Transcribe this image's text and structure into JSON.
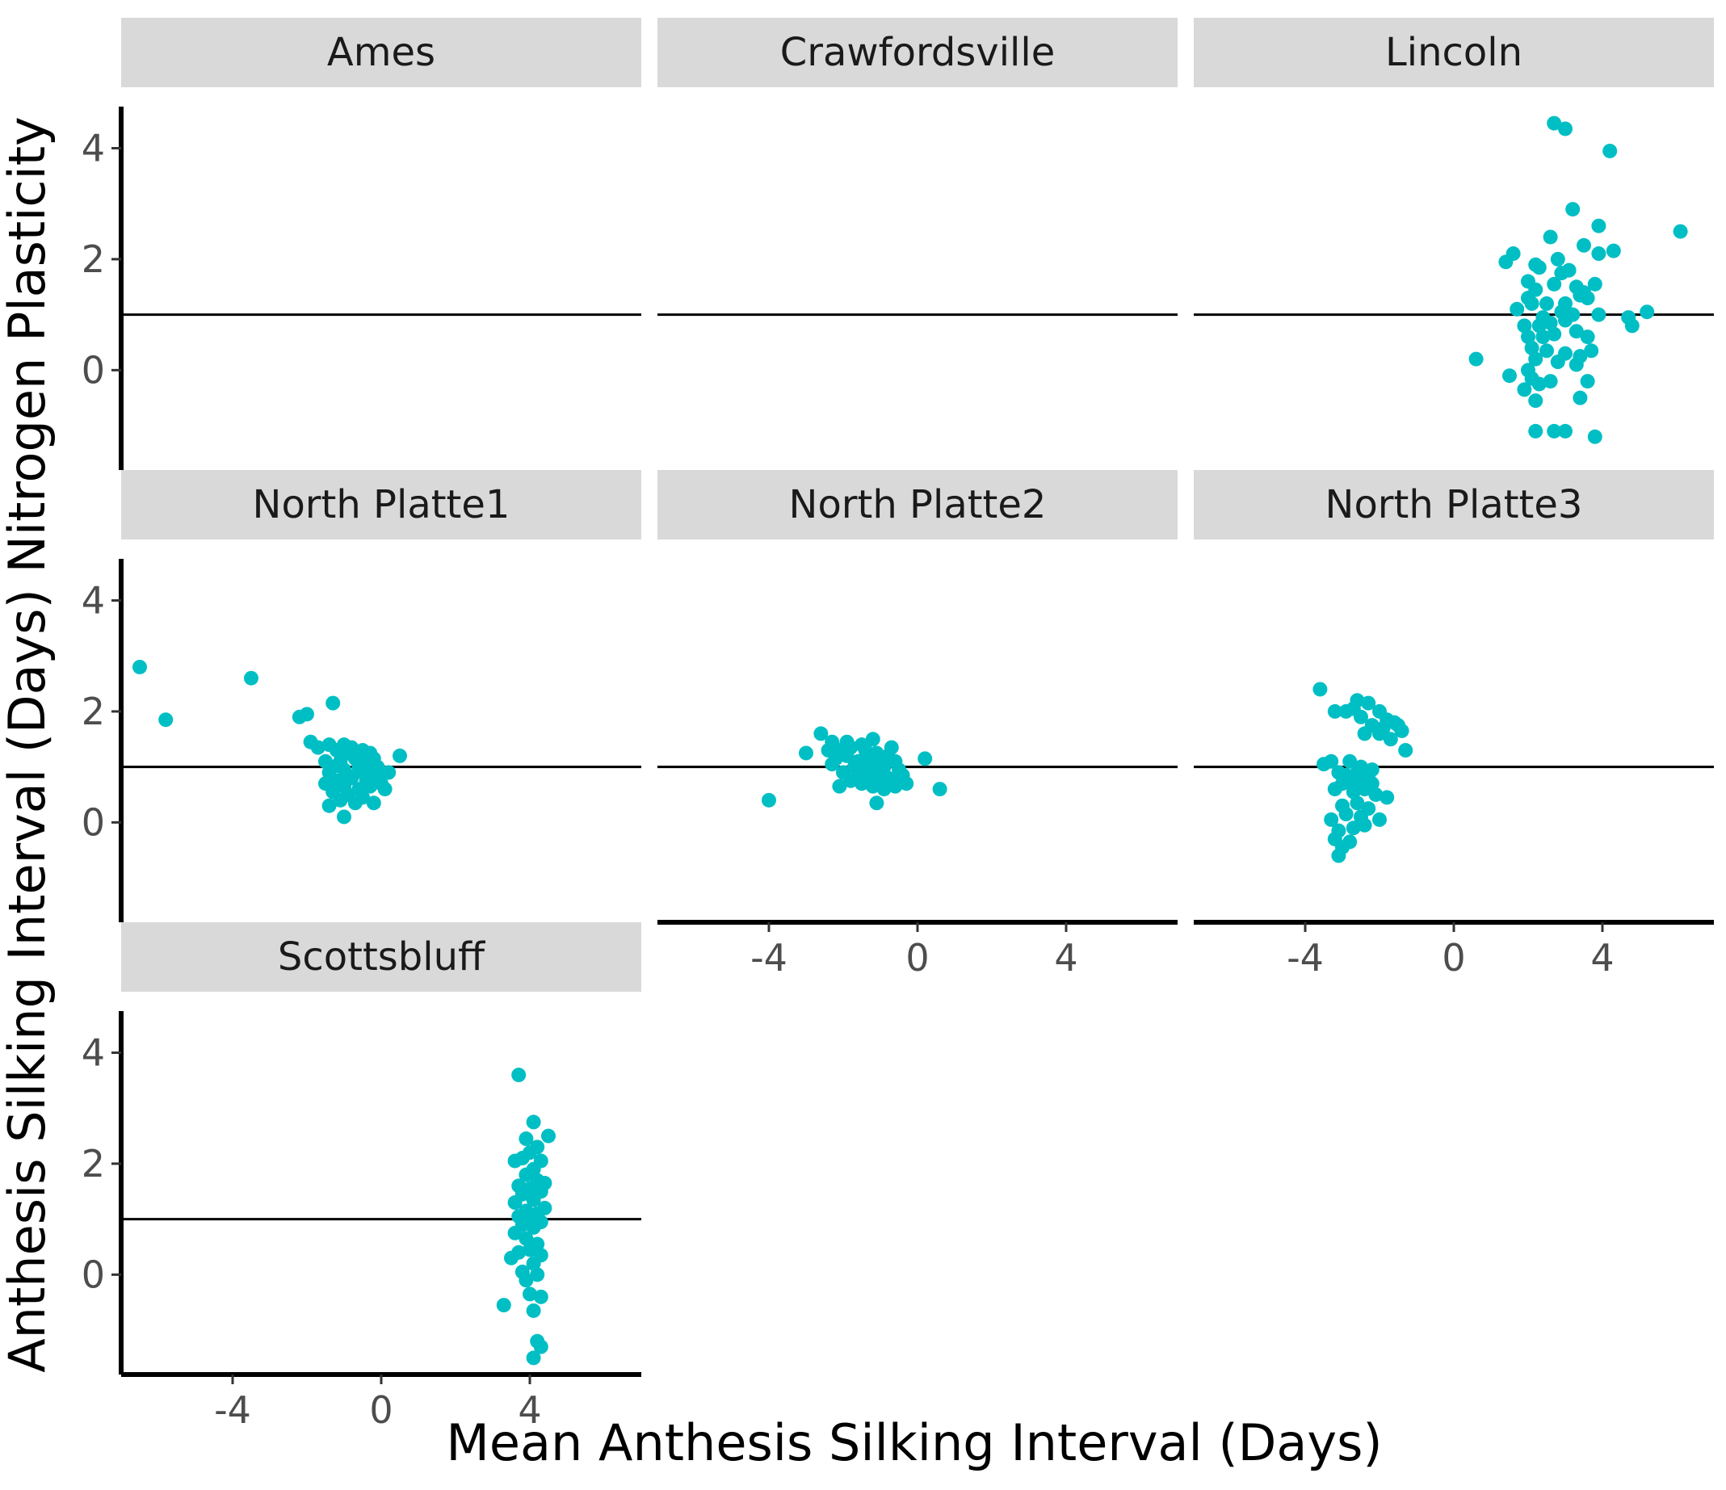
{
  "chart_data": {
    "type": "scatter",
    "xlabel": "Mean Anthesis Silking Interval (Days)",
    "ylabel": "Anthesis Silking Interval (Days) Nitrogen Plasticity",
    "xlim": [
      -7,
      7
    ],
    "ylim": [
      -1.8,
      4.75
    ],
    "x_ticks": [
      -4,
      0,
      4
    ],
    "x_tick_labels": [
      "-4",
      "0",
      "4"
    ],
    "y_ticks": [
      0,
      2,
      4
    ],
    "y_tick_labels": [
      "0",
      "2",
      "4"
    ],
    "reference_line_y": 1,
    "grid": false,
    "legend": "none",
    "point_color": "#00BFC4",
    "strip_fill": "#D9D9D9",
    "line_color": "#000000",
    "panels": [
      {
        "name": "Ames",
        "x": [],
        "y": []
      },
      {
        "name": "Crawfordsville",
        "x": [],
        "y": []
      },
      {
        "name": "Lincoln",
        "x": [
          2.7,
          3.0,
          4.2,
          3.2,
          3.9,
          6.1,
          1.4,
          1.6,
          2.2,
          2.6,
          2.8,
          3.5,
          4.3,
          3.9,
          2.0,
          2.3,
          2.9,
          3.1,
          3.3,
          3.5,
          3.6,
          3.8,
          2.0,
          2.2,
          2.5,
          2.7,
          3.0,
          3.4,
          1.7,
          2.1,
          2.4,
          2.9,
          3.2,
          3.9,
          4.7,
          5.2,
          1.9,
          2.3,
          2.6,
          3.0,
          3.3,
          4.8,
          2.0,
          2.4,
          2.7,
          3.6,
          2.1,
          2.5,
          3.0,
          3.4,
          3.7,
          0.6,
          2.0,
          2.2,
          2.8,
          3.3,
          2.1,
          1.5,
          2.3,
          3.6,
          2.6,
          1.9,
          3.4,
          2.2,
          2.2,
          2.7,
          3.0,
          3.8
        ],
        "y": [
          4.45,
          4.35,
          3.95,
          2.9,
          2.6,
          2.5,
          1.95,
          2.1,
          1.9,
          2.4,
          2.0,
          2.25,
          2.15,
          2.1,
          1.6,
          1.85,
          1.75,
          1.8,
          1.5,
          1.4,
          1.3,
          1.55,
          1.3,
          1.45,
          1.2,
          1.55,
          1.2,
          1.35,
          1.1,
          1.2,
          0.95,
          1.05,
          1.0,
          1.0,
          0.95,
          1.05,
          0.8,
          0.8,
          0.85,
          0.9,
          0.7,
          0.8,
          0.6,
          0.6,
          0.65,
          0.6,
          0.4,
          0.35,
          0.3,
          0.25,
          0.35,
          0.2,
          0.0,
          0.2,
          0.15,
          0.1,
          -0.15,
          -0.1,
          -0.25,
          -0.2,
          -0.2,
          -0.35,
          -0.5,
          -0.55,
          -1.1,
          -1.1,
          -1.1,
          -1.2
        ]
      },
      {
        "name": "North Platte1",
        "x": [
          -6.5,
          -5.8,
          -3.5,
          -2.2,
          -2.0,
          -1.3,
          -1.9,
          -1.7,
          -1.4,
          -1.0,
          -0.8,
          -0.5,
          -0.3,
          0.5,
          -1.2,
          -0.9,
          -0.6,
          -0.4,
          -0.2,
          -1.5,
          -1.1,
          -0.7,
          -0.3,
          -0.1,
          -1.3,
          -1.0,
          -0.6,
          -0.2,
          0.2,
          -1.4,
          -0.9,
          -0.5,
          -0.1,
          -1.2,
          -0.8,
          -0.4,
          0.0,
          -1.5,
          -1.0,
          -0.6,
          -0.3,
          0.1,
          -1.3,
          -0.9,
          -0.5,
          -1.4,
          -1.1,
          -0.7,
          -0.2,
          -1.0
        ],
        "y": [
          2.8,
          1.85,
          2.6,
          1.9,
          1.95,
          2.15,
          1.45,
          1.35,
          1.4,
          1.4,
          1.35,
          1.3,
          1.25,
          1.2,
          1.3,
          1.25,
          1.2,
          1.25,
          1.15,
          1.1,
          1.1,
          1.15,
          1.05,
          1.0,
          1.0,
          0.95,
          1.0,
          0.95,
          0.9,
          0.9,
          0.85,
          0.9,
          0.8,
          0.75,
          0.8,
          0.75,
          0.7,
          0.7,
          0.65,
          0.6,
          0.65,
          0.6,
          0.55,
          0.5,
          0.45,
          0.3,
          0.4,
          0.35,
          0.35,
          0.1
        ]
      },
      {
        "name": "North Platte2",
        "x": [
          -4.0,
          -3.0,
          -2.6,
          -2.3,
          -2.1,
          -1.9,
          -1.5,
          -1.2,
          -0.7,
          0.2,
          -2.4,
          -2.0,
          -1.8,
          -1.4,
          -1.1,
          -0.8,
          -2.2,
          -1.9,
          -1.6,
          -1.3,
          -1.0,
          -0.6,
          -2.3,
          -1.7,
          -1.5,
          -1.2,
          -0.9,
          -0.5,
          -2.0,
          -1.6,
          -1.4,
          -1.1,
          -0.8,
          -0.4,
          -1.8,
          -1.3,
          -1.0,
          -0.7,
          -0.3,
          -2.1,
          -1.5,
          -1.2,
          -0.9,
          -0.6,
          0.6,
          -1.1
        ],
        "y": [
          0.4,
          1.25,
          1.6,
          1.45,
          1.3,
          1.45,
          1.4,
          1.5,
          1.35,
          1.15,
          1.3,
          1.25,
          1.35,
          1.3,
          1.25,
          1.2,
          1.15,
          1.2,
          1.1,
          1.15,
          1.05,
          1.1,
          1.05,
          1.0,
          1.05,
          0.95,
          1.0,
          0.95,
          0.9,
          0.85,
          0.9,
          0.85,
          0.8,
          0.85,
          0.75,
          0.8,
          0.7,
          0.75,
          0.7,
          0.65,
          0.7,
          0.65,
          0.6,
          0.65,
          0.6,
          0.35
        ]
      },
      {
        "name": "North Platte3",
        "x": [
          -3.6,
          -2.9,
          -2.6,
          -3.2,
          -2.7,
          -2.3,
          -2.0,
          -1.8,
          -1.6,
          -1.5,
          -2.5,
          -2.2,
          -1.9,
          -1.4,
          -2.4,
          -2.0,
          -1.7,
          -1.3,
          -3.5,
          -3.3,
          -2.8,
          -2.5,
          -2.2,
          -3.1,
          -2.9,
          -2.6,
          -2.3,
          -3.0,
          -2.8,
          -2.5,
          -2.2,
          -3.2,
          -2.7,
          -2.4,
          -2.1,
          -1.8,
          -3.0,
          -2.6,
          -2.3,
          -3.3,
          -2.9,
          -2.5,
          -2.0,
          -3.1,
          -2.7,
          -2.4,
          -3.2,
          -2.8,
          -3.0,
          -3.1
        ],
        "y": [
          2.4,
          2.0,
          2.2,
          2.0,
          2.05,
          2.15,
          2.0,
          1.85,
          1.8,
          1.75,
          1.9,
          1.75,
          1.7,
          1.65,
          1.6,
          1.6,
          1.5,
          1.3,
          1.05,
          1.1,
          1.1,
          1.0,
          0.95,
          0.9,
          0.85,
          0.9,
          0.8,
          0.7,
          0.75,
          0.7,
          0.7,
          0.6,
          0.55,
          0.6,
          0.5,
          0.45,
          0.3,
          0.35,
          0.25,
          0.05,
          0.15,
          0.1,
          0.05,
          -0.15,
          -0.1,
          -0.05,
          -0.3,
          -0.35,
          -0.45,
          -0.6
        ]
      },
      {
        "name": "Scottsbluff",
        "x": [
          3.7,
          4.1,
          4.5,
          3.9,
          4.2,
          4.0,
          3.8,
          4.3,
          3.6,
          4.1,
          4.4,
          3.9,
          4.2,
          3.7,
          4.0,
          4.3,
          3.8,
          4.1,
          3.6,
          4.4,
          3.9,
          4.2,
          3.7,
          4.0,
          4.3,
          3.8,
          4.1,
          3.6,
          3.9,
          4.2,
          4.0,
          3.7,
          4.3,
          3.5,
          4.1,
          3.8,
          4.2,
          3.9,
          4.0,
          4.3,
          3.3,
          4.1,
          4.2,
          4.3,
          4.1
        ],
        "y": [
          3.6,
          2.75,
          2.5,
          2.45,
          2.3,
          2.2,
          2.1,
          2.05,
          2.05,
          1.9,
          1.65,
          1.8,
          1.7,
          1.6,
          1.55,
          1.5,
          1.45,
          1.35,
          1.3,
          1.2,
          1.15,
          1.1,
          1.05,
          1.0,
          0.95,
          0.9,
          0.85,
          0.75,
          0.65,
          0.55,
          0.45,
          0.4,
          0.35,
          0.3,
          0.2,
          0.05,
          0.0,
          -0.1,
          -0.35,
          -0.4,
          -0.55,
          -0.65,
          -1.2,
          -1.3,
          -1.5
        ]
      }
    ]
  }
}
